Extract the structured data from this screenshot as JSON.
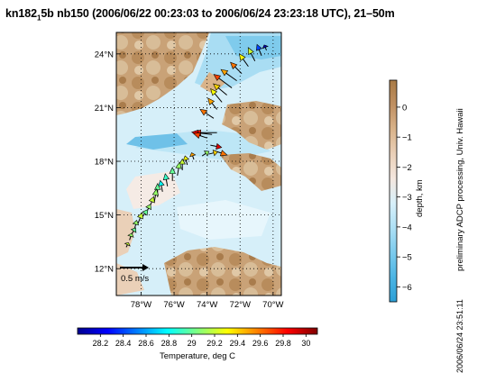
{
  "title": {
    "pre": "kn182",
    "sub": "1",
    "post": "5b nb150 (2006/06/22 00:23:03 to 2006/06/24 23:23:18 UTC), 21–50m"
  },
  "side_label": "preliminary ADCP processing,  Univ. Hawaii",
  "timestamp": "2006/06/24 23:51:11",
  "chart_data": {
    "type": "vector-map",
    "map": {
      "lon_range": [
        -79.5,
        -69.5
      ],
      "lat_range": [
        10.5,
        25.2
      ],
      "lon_ticks": [
        {
          "value": -78,
          "label": "78°W"
        },
        {
          "value": -76,
          "label": "76°W"
        },
        {
          "value": -74,
          "label": "74°W"
        },
        {
          "value": -72,
          "label": "72°W"
        },
        {
          "value": -70,
          "label": "70°W"
        }
      ],
      "lat_ticks": [
        {
          "value": 12,
          "label": "12°N"
        },
        {
          "value": 15,
          "label": "15°N"
        },
        {
          "value": 18,
          "label": "18°N"
        },
        {
          "value": 21,
          "label": "21°N"
        },
        {
          "value": 24,
          "label": "24°N"
        }
      ],
      "grid": true
    },
    "scale_arrow": {
      "label": "0.5 m/s"
    },
    "depth_colorbar": {
      "label": "depth, km",
      "ticks": [
        0,
        -1,
        -2,
        -3,
        -4,
        -5,
        -6
      ],
      "range": [
        -6.5,
        0.9
      ],
      "colors": [
        "#2c9fd6",
        "#4cb5e4",
        "#7ccbee",
        "#ade0f5",
        "#d8f0fa",
        "#f4e7df",
        "#ead0b8",
        "#d9b38a",
        "#c09062",
        "#a87a45"
      ]
    },
    "temperature_colorbar": {
      "label": "Temperature, deg C",
      "ticks": [
        "28.2",
        "28.4",
        "28.6",
        "28.8",
        "29",
        "29.2",
        "29.4",
        "29.6",
        "29.8",
        "30"
      ],
      "range": [
        28.0,
        30.1
      ],
      "colors": [
        "#00008f",
        "#0000ff",
        "#0080ff",
        "#00ffff",
        "#80ff80",
        "#ffff00",
        "#ff8000",
        "#ff0000",
        "#800000"
      ]
    },
    "vectors": [
      {
        "lon": -70.4,
        "lat": 24.2,
        "u": -0.05,
        "v": 0.12,
        "t": 28.1
      },
      {
        "lon": -70.7,
        "lat": 23.9,
        "u": -0.1,
        "v": 0.25,
        "t": 28.4
      },
      {
        "lon": -71.1,
        "lat": 23.6,
        "u": -0.15,
        "v": 0.3,
        "t": 29.2
      },
      {
        "lon": -71.5,
        "lat": 23.3,
        "u": -0.2,
        "v": 0.28,
        "t": 29.3
      },
      {
        "lon": -71.9,
        "lat": 22.9,
        "u": -0.25,
        "v": 0.25,
        "t": 29.6
      },
      {
        "lon": -72.2,
        "lat": 22.5,
        "u": -0.35,
        "v": 0.25,
        "t": 29.5
      },
      {
        "lon": -72.5,
        "lat": 22.1,
        "u": -0.4,
        "v": 0.3,
        "t": 29.7
      },
      {
        "lon": -72.8,
        "lat": 21.7,
        "u": -0.3,
        "v": 0.25,
        "t": 29.4
      },
      {
        "lon": -73.1,
        "lat": 21.3,
        "u": -0.25,
        "v": 0.3,
        "t": 29.3
      },
      {
        "lon": -73.4,
        "lat": 20.9,
        "u": -0.2,
        "v": 0.25,
        "t": 29.5
      },
      {
        "lon": -73.6,
        "lat": 20.4,
        "u": -0.3,
        "v": 0.2,
        "t": 29.6
      },
      {
        "lon": -73.4,
        "lat": 19.6,
        "u": -0.5,
        "v": 0.0,
        "t": 29.8
      },
      {
        "lon": -73.7,
        "lat": 19.5,
        "u": -0.45,
        "v": 0.05,
        "t": 29.9
      },
      {
        "lon": -74.0,
        "lat": 19.3,
        "u": -0.3,
        "v": 0.1,
        "t": 29.7
      },
      {
        "lon": -73.8,
        "lat": 18.9,
        "u": 0.25,
        "v": -0.05,
        "t": 29.9
      },
      {
        "lon": -73.6,
        "lat": 18.6,
        "u": 0.3,
        "v": -0.1,
        "t": 29.6
      },
      {
        "lon": -73.9,
        "lat": 18.4,
        "u": 0.2,
        "v": 0.05,
        "t": 29.4
      },
      {
        "lon": -74.3,
        "lat": 18.3,
        "u": 0.15,
        "v": 0.1,
        "t": 29.1
      },
      {
        "lon": -74.8,
        "lat": 18.1,
        "u": -0.05,
        "v": 0.15,
        "t": 29.5
      },
      {
        "lon": -75.2,
        "lat": 17.8,
        "u": -0.05,
        "v": 0.2,
        "t": 29.3
      },
      {
        "lon": -75.5,
        "lat": 17.5,
        "u": 0.0,
        "v": 0.25,
        "t": 29.2
      },
      {
        "lon": -75.8,
        "lat": 17.2,
        "u": 0.05,
        "v": 0.3,
        "t": 29.1
      },
      {
        "lon": -76.1,
        "lat": 16.9,
        "u": 0.0,
        "v": 0.3,
        "t": 29.0
      },
      {
        "lon": -76.4,
        "lat": 16.6,
        "u": -0.05,
        "v": 0.28,
        "t": 28.9
      },
      {
        "lon": -76.7,
        "lat": 16.3,
        "u": -0.05,
        "v": 0.25,
        "t": 28.8
      },
      {
        "lon": -77.0,
        "lat": 16.0,
        "u": 0.0,
        "v": 0.3,
        "t": 29.0
      },
      {
        "lon": -77.2,
        "lat": 15.7,
        "u": 0.05,
        "v": 0.3,
        "t": 29.1
      },
      {
        "lon": -77.5,
        "lat": 15.4,
        "u": 0.1,
        "v": 0.25,
        "t": 29.2
      },
      {
        "lon": -77.7,
        "lat": 15.1,
        "u": 0.1,
        "v": 0.2,
        "t": 29.1
      },
      {
        "lon": -78.0,
        "lat": 14.8,
        "u": 0.15,
        "v": 0.2,
        "t": 29.0
      },
      {
        "lon": -78.2,
        "lat": 14.5,
        "u": 0.1,
        "v": 0.25,
        "t": 29.2
      },
      {
        "lon": -78.4,
        "lat": 14.2,
        "u": 0.05,
        "v": 0.2,
        "t": 29.1
      },
      {
        "lon": -78.6,
        "lat": 13.9,
        "u": 0.1,
        "v": 0.15,
        "t": 29.0
      },
      {
        "lon": -78.7,
        "lat": 13.6,
        "u": 0.05,
        "v": 0.15,
        "t": 29.1
      },
      {
        "lon": -78.9,
        "lat": 13.2,
        "u": 0.05,
        "v": 0.1,
        "t": 29.2
      }
    ]
  }
}
